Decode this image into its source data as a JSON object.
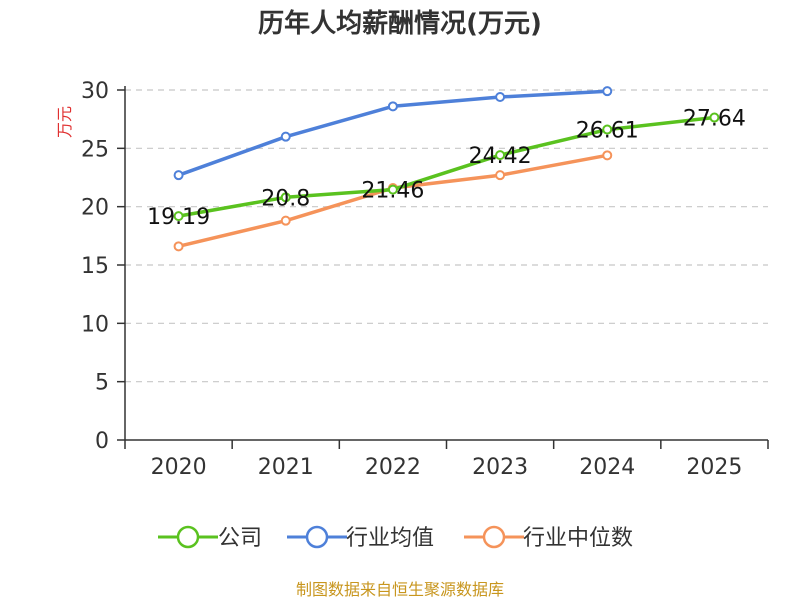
{
  "chart_data": {
    "type": "line",
    "title": "历年人均薪酬情况(万元)",
    "ylabel": "万元",
    "xlabel": "",
    "ylim": [
      0,
      30
    ],
    "yticks": [
      0,
      5,
      10,
      15,
      20,
      25,
      30
    ],
    "grid": true,
    "legend_position": "bottom",
    "categories": [
      "2020",
      "2021",
      "2022",
      "2023",
      "2024",
      "2025"
    ],
    "series": [
      {
        "name": "公司",
        "color": "#5ac21f",
        "values": [
          19.19,
          20.8,
          21.46,
          24.42,
          26.61,
          27.64
        ],
        "labels": [
          "19.19",
          "20.8",
          "21.46",
          "24.42",
          "26.61",
          "27.64"
        ]
      },
      {
        "name": "行业均值",
        "color": "#4e80d9",
        "values": [
          22.7,
          26.0,
          28.6,
          29.4,
          29.9,
          null
        ]
      },
      {
        "name": "行业中位数",
        "color": "#f5935a",
        "values": [
          16.6,
          18.8,
          21.6,
          22.7,
          24.4,
          null
        ]
      }
    ]
  },
  "source_text": "制图数据来自恒生聚源数据库"
}
